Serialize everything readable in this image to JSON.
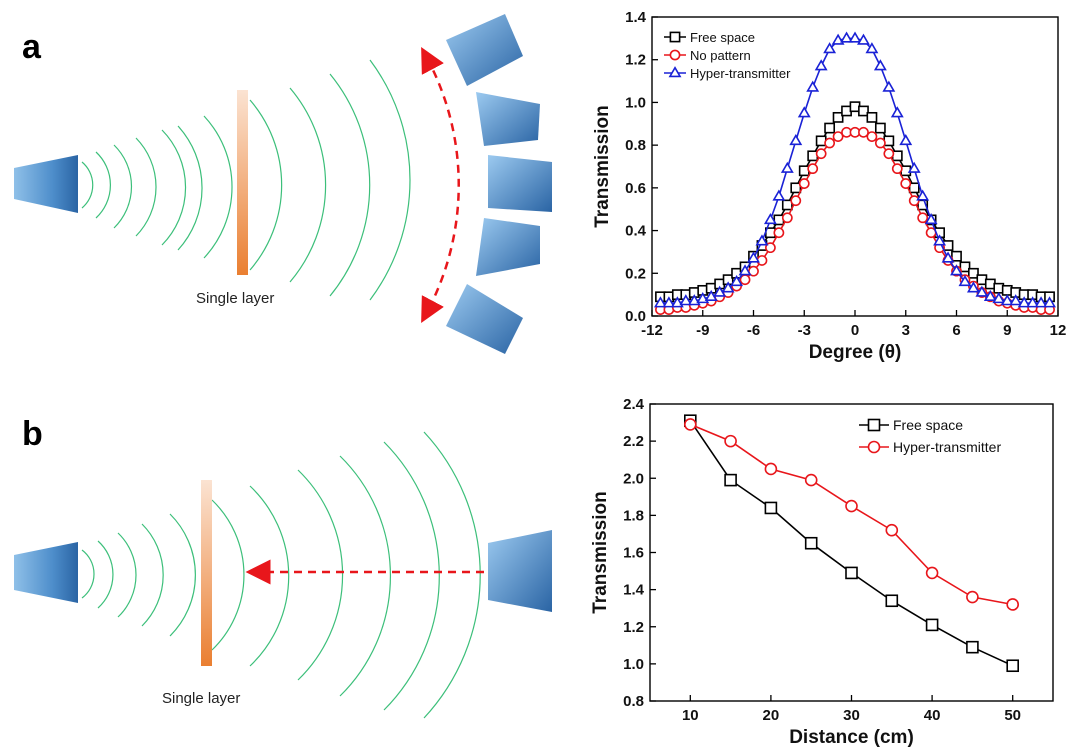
{
  "figure": {
    "panel_a_letter": "a",
    "panel_b_letter": "b",
    "panel_a_caption": "Single layer",
    "panel_b_caption": "Single layer"
  },
  "chart_data": [
    {
      "type": "line",
      "xlabel": "Degree (θ)",
      "ylabel": "Transmission",
      "xlim": [
        -12,
        12
      ],
      "ylim": [
        0.0,
        1.4
      ],
      "xticks": [
        -12,
        -9,
        -6,
        -3,
        0,
        3,
        6,
        9,
        12
      ],
      "yticks": [
        0.0,
        0.2,
        0.4,
        0.6,
        0.8,
        1.0,
        1.2,
        1.4
      ],
      "ytick_labels": [
        "0.0",
        "0.2",
        "0.4",
        "0.6",
        "0.8",
        "1.0",
        "1.2",
        "1.4"
      ],
      "legend_position": "top-left",
      "grid": false,
      "x": [
        -11.5,
        -11,
        -10.5,
        -10,
        -9.5,
        -9,
        -8.5,
        -8,
        -7.5,
        -7,
        -6.5,
        -6,
        -5.5,
        -5,
        -4.5,
        -4,
        -3.5,
        -3,
        -2.5,
        -2,
        -1.5,
        -1,
        -0.5,
        0,
        0.5,
        1,
        1.5,
        2,
        2.5,
        3,
        3.5,
        4,
        4.5,
        5,
        5.5,
        6,
        6.5,
        7,
        7.5,
        8,
        8.5,
        9,
        9.5,
        10,
        10.5,
        11,
        11.5
      ],
      "series": [
        {
          "name": "Free space",
          "color": "#000000",
          "marker": "square",
          "values": [
            0.09,
            0.09,
            0.1,
            0.1,
            0.11,
            0.12,
            0.13,
            0.15,
            0.17,
            0.2,
            0.23,
            0.28,
            0.33,
            0.39,
            0.45,
            0.52,
            0.6,
            0.68,
            0.75,
            0.82,
            0.88,
            0.93,
            0.96,
            0.98,
            0.96,
            0.93,
            0.88,
            0.82,
            0.75,
            0.68,
            0.6,
            0.52,
            0.45,
            0.39,
            0.33,
            0.28,
            0.23,
            0.2,
            0.17,
            0.15,
            0.13,
            0.12,
            0.11,
            0.1,
            0.1,
            0.09,
            0.09
          ]
        },
        {
          "name": "No pattern",
          "color": "#e8161b",
          "marker": "circle",
          "values": [
            0.03,
            0.03,
            0.04,
            0.04,
            0.05,
            0.06,
            0.07,
            0.09,
            0.11,
            0.14,
            0.17,
            0.21,
            0.26,
            0.32,
            0.39,
            0.46,
            0.54,
            0.62,
            0.69,
            0.76,
            0.81,
            0.84,
            0.86,
            0.86,
            0.86,
            0.84,
            0.81,
            0.76,
            0.69,
            0.62,
            0.54,
            0.46,
            0.39,
            0.32,
            0.26,
            0.21,
            0.17,
            0.14,
            0.11,
            0.09,
            0.07,
            0.06,
            0.05,
            0.04,
            0.04,
            0.03,
            0.03
          ]
        },
        {
          "name": "Hyper-transmitter",
          "color": "#1a22d6",
          "marker": "triangle",
          "values": [
            0.06,
            0.06,
            0.06,
            0.07,
            0.07,
            0.08,
            0.09,
            0.11,
            0.13,
            0.16,
            0.21,
            0.27,
            0.35,
            0.45,
            0.56,
            0.69,
            0.82,
            0.95,
            1.07,
            1.17,
            1.25,
            1.29,
            1.3,
            1.3,
            1.29,
            1.25,
            1.17,
            1.07,
            0.95,
            0.82,
            0.69,
            0.56,
            0.45,
            0.35,
            0.27,
            0.21,
            0.16,
            0.13,
            0.11,
            0.09,
            0.08,
            0.07,
            0.07,
            0.06,
            0.06,
            0.06,
            0.06
          ]
        }
      ]
    },
    {
      "type": "line",
      "xlabel": "Distance (cm)",
      "ylabel": "Transmission",
      "xlim": [
        5,
        55
      ],
      "ylim": [
        0.8,
        2.4
      ],
      "xticks": [
        10,
        20,
        30,
        40,
        50
      ],
      "yticks": [
        0.8,
        1.0,
        1.2,
        1.4,
        1.6,
        1.8,
        2.0,
        2.2,
        2.4
      ],
      "ytick_labels": [
        "0.8",
        "1.0",
        "1.2",
        "1.4",
        "1.6",
        "1.8",
        "2.0",
        "2.2",
        "2.4"
      ],
      "legend_position": "top-right",
      "grid": false,
      "x": [
        10,
        15,
        20,
        25,
        30,
        35,
        40,
        45,
        50
      ],
      "series": [
        {
          "name": "Free space",
          "color": "#000000",
          "marker": "square",
          "values": [
            2.31,
            1.99,
            1.84,
            1.65,
            1.49,
            1.34,
            1.21,
            1.09,
            0.99
          ]
        },
        {
          "name": "Hyper-transmitter",
          "color": "#e8161b",
          "marker": "circle",
          "values": [
            2.29,
            2.2,
            2.05,
            1.99,
            1.85,
            1.72,
            1.49,
            1.36,
            1.32
          ]
        }
      ]
    }
  ]
}
